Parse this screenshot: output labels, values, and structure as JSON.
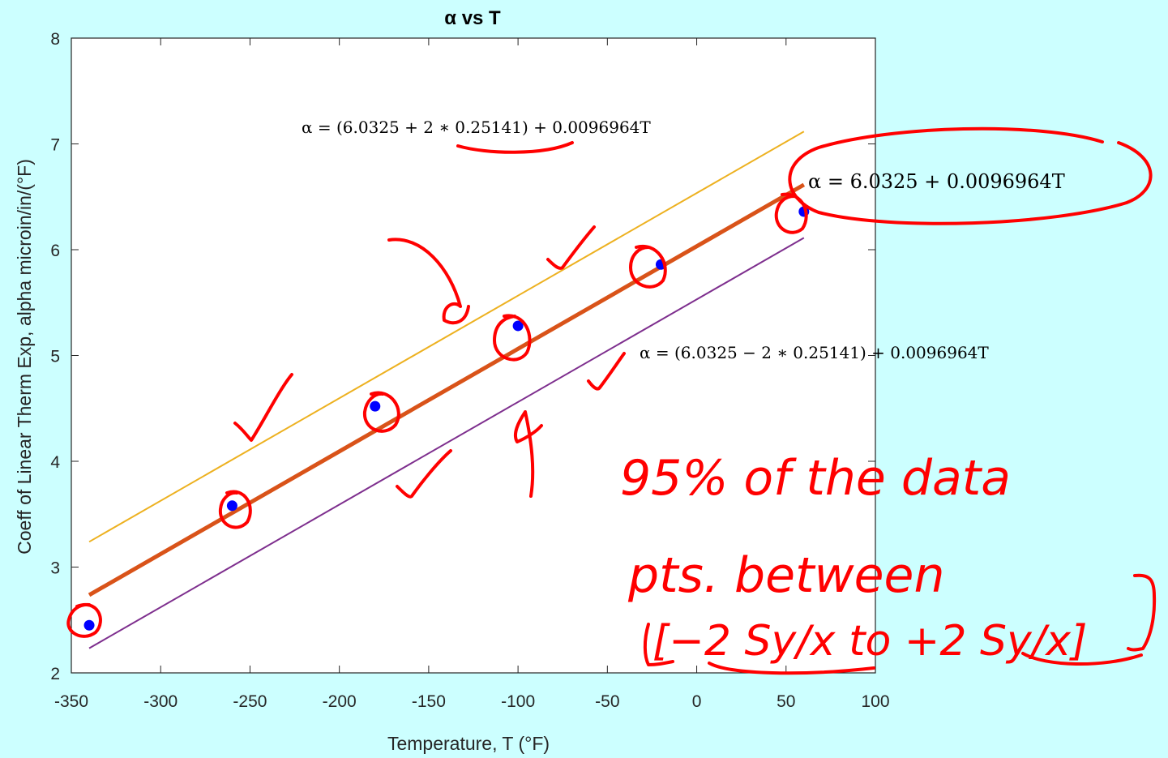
{
  "chart_data": {
    "type": "scatter",
    "title": "α vs T",
    "xlabel": "Temperature, T (°F)",
    "ylabel": "Coeff of Linear Therm Exp, alpha microin/in/(°F)",
    "xlim": [
      -350,
      100
    ],
    "ylim": [
      2,
      8
    ],
    "xticks": [
      "-350",
      "-300",
      "-250",
      "-200",
      "-150",
      "-100",
      "-50",
      "0",
      "50",
      "100"
    ],
    "yticks": [
      "2",
      "3",
      "4",
      "5",
      "6",
      "7",
      "8"
    ],
    "grid": false,
    "series": [
      {
        "kind": "points",
        "color": "#0000ff",
        "x": [
          -340,
          -260,
          -180,
          -100,
          -20,
          60
        ],
        "y": [
          2.45,
          3.58,
          4.52,
          5.28,
          5.86,
          6.36
        ]
      },
      {
        "kind": "line",
        "color": "#d95319",
        "x": [
          -340,
          60
        ],
        "y": [
          2.736,
          6.614
        ]
      },
      {
        "kind": "line",
        "color": "#edb120",
        "x": [
          -340,
          60
        ],
        "y": [
          3.239,
          7.117
        ]
      },
      {
        "kind": "line",
        "color": "#7e2f8e",
        "x": [
          -340,
          60
        ],
        "y": [
          2.233,
          6.112
        ]
      }
    ],
    "annotations": [
      {
        "id": "upper",
        "text": "α = (6.0325 + 2 ∗ 0.25141) + 0.0096964T"
      },
      {
        "id": "fit",
        "text": "α = 6.0325 + 0.0096964T"
      },
      {
        "id": "lower",
        "text": "α = (6.0325 − 2 ∗ 0.25141) + 0.0096964T"
      }
    ]
  },
  "handwritten_note": {
    "line1": "95% of the data",
    "line2": "pts. between",
    "line3": "[−2 Sy/x to +2 Sy/x]"
  }
}
